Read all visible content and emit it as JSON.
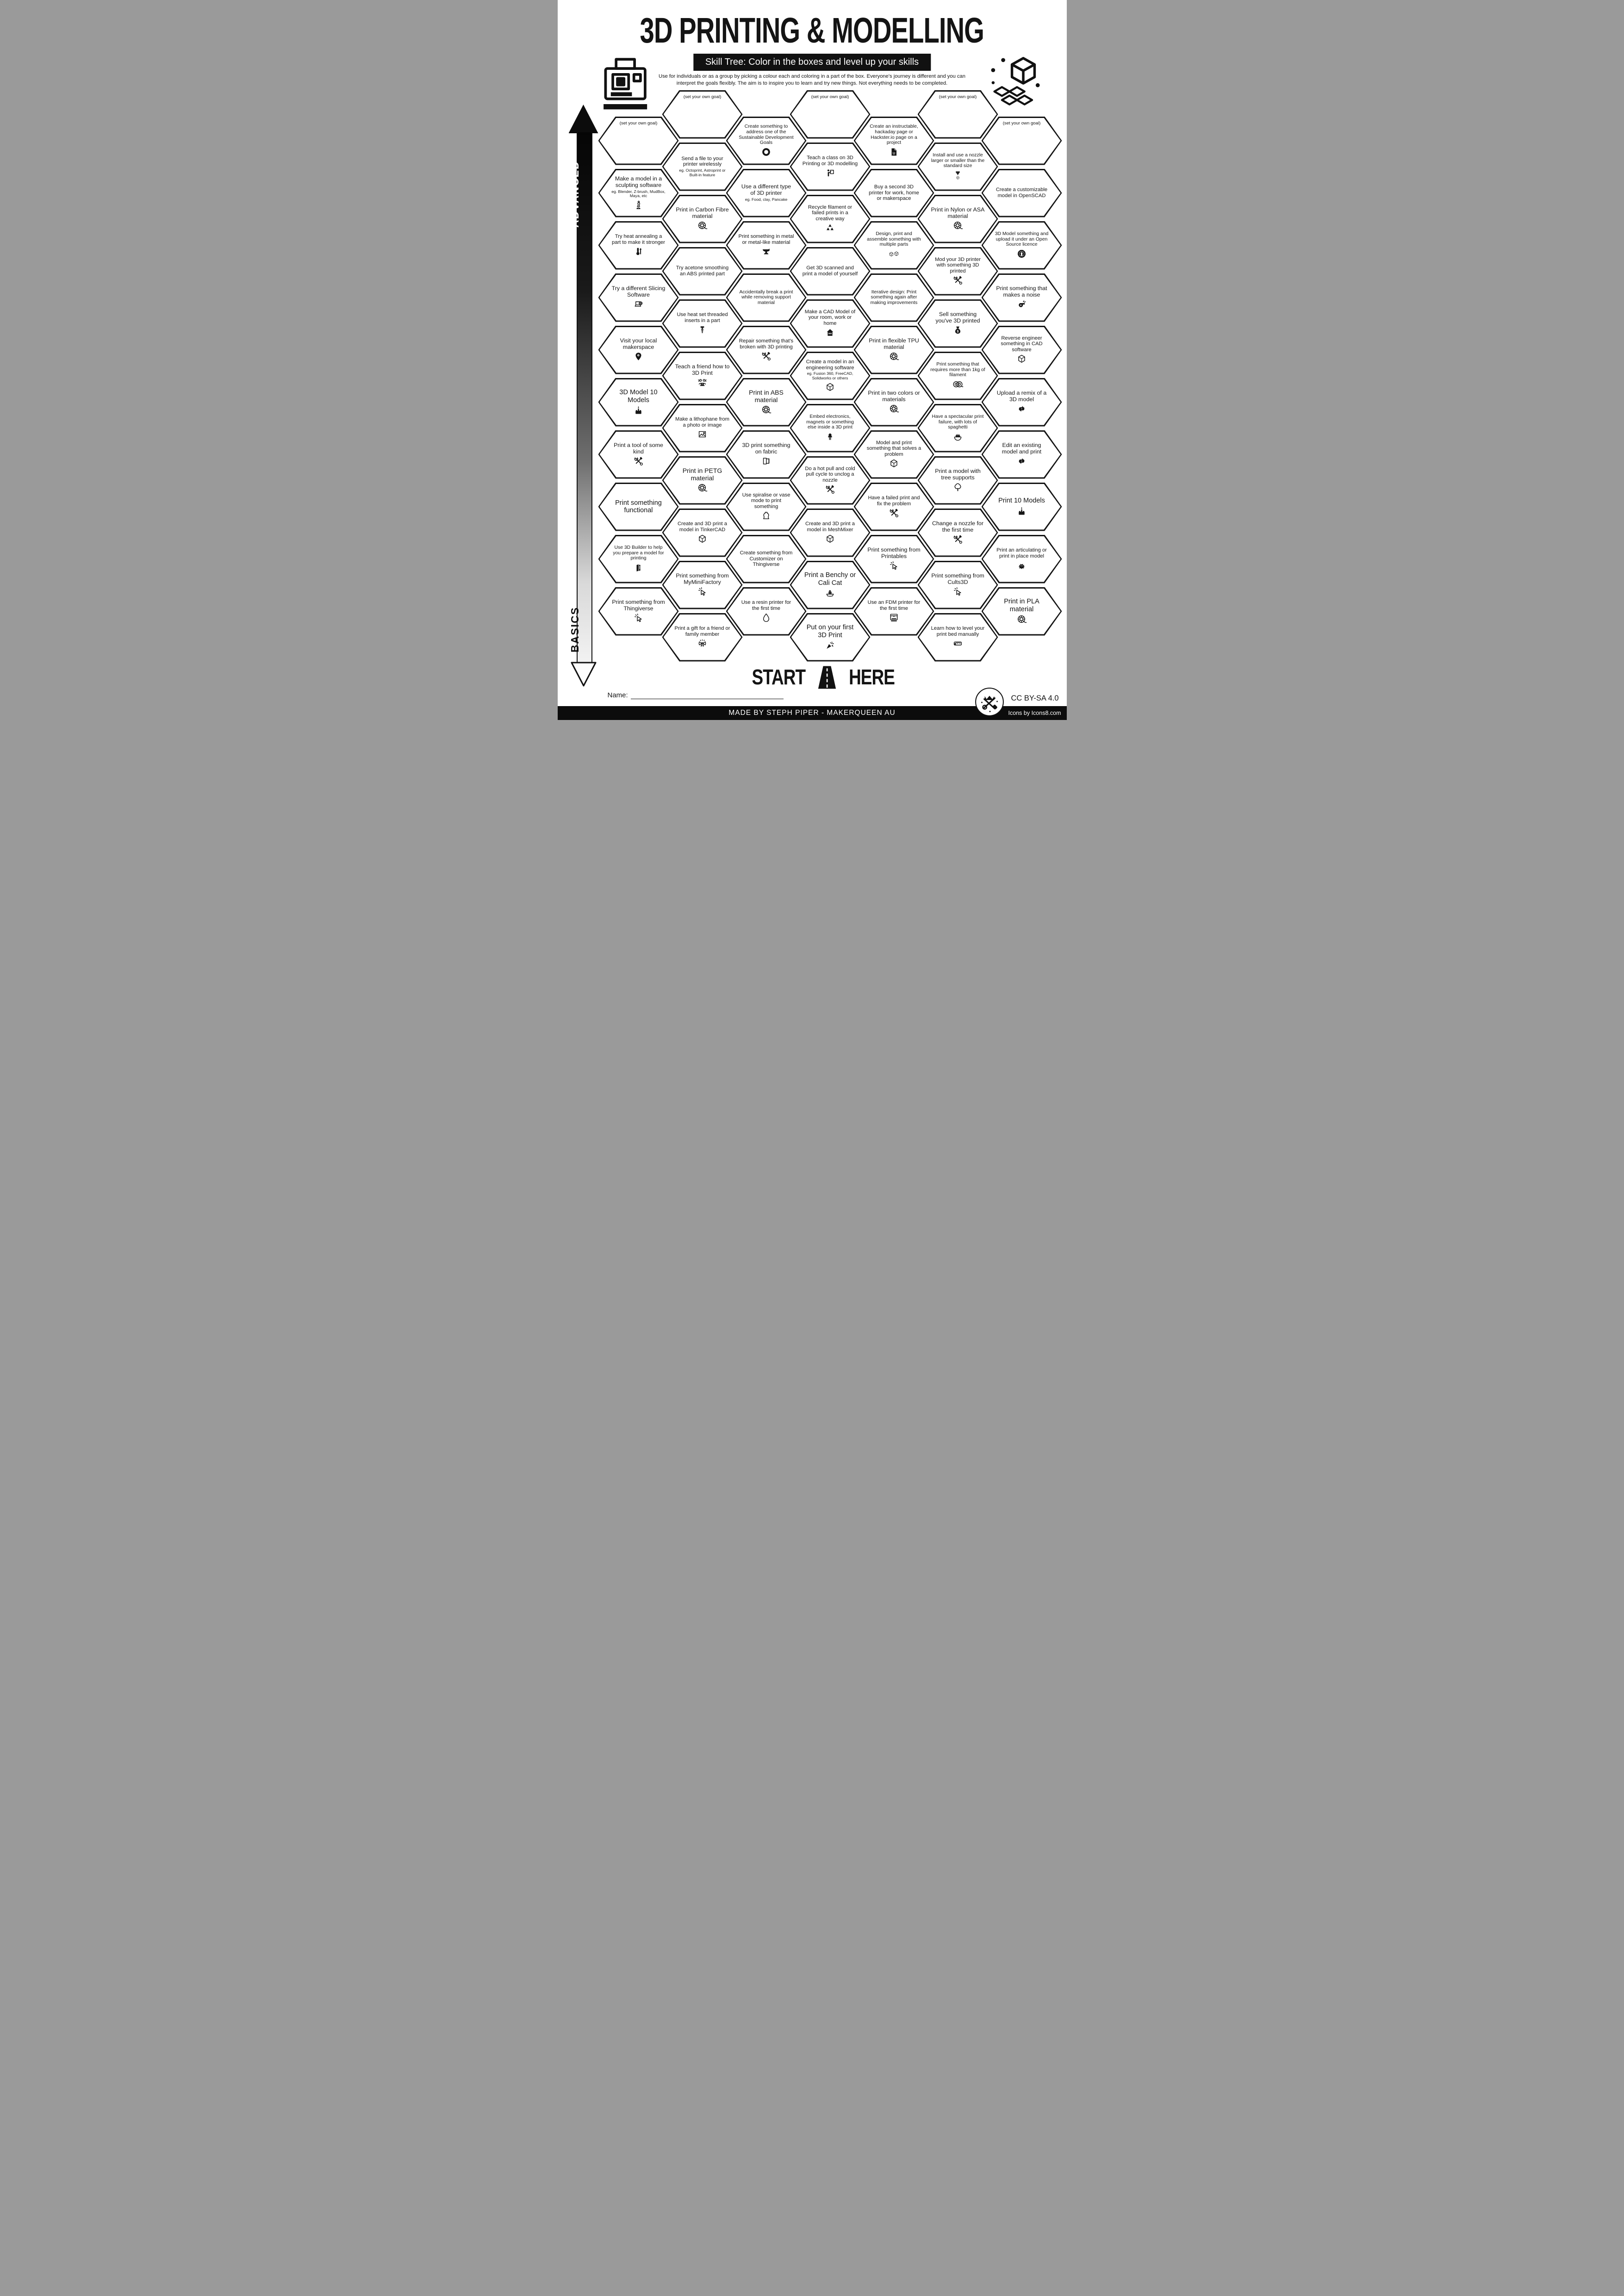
{
  "header": {
    "title": "3D PRINTING & MODELLING",
    "banner": "Skill Tree:  Color in the boxes and level up your skills",
    "desc1": "Use for individuals or as a group by picking a colour each and coloring in a part of the box.  Everyone's journey is different and you can",
    "desc2": "interpret the goals flexibly.  The aim is to inspire you to learn and try new things. Not everything needs to be completed."
  },
  "axis": {
    "advanced": "ADVANCED",
    "basics": "BASICS"
  },
  "start": {
    "start": "START",
    "here": "HERE"
  },
  "name_label": "Name:",
  "license": "CC BY-SA 4.0",
  "footer": {
    "credit": "MADE BY STEPH PIPER  -  MAKERQUEEN AU",
    "icons_credit": "Icons by Icons8.com"
  },
  "colors": {
    "ink": "#141414",
    "paper": "#ffffff",
    "footer_bg": "#0c0c0c"
  },
  "goal_label": "(set your own goal)",
  "columns": [
    {
      "id": "col-a",
      "hexes": [
        {
          "goal": true,
          "label": "(set your own goal)"
        },
        {
          "label": "Make a model in a sculpting software",
          "sub": "eg. Blender, Z-brush, MudBox, Maya, etc",
          "icon": "statue-icon"
        },
        {
          "label": "Try heat annealing a part to make it stronger",
          "icon": "thermometer-up-icon"
        },
        {
          "label": "Try a different Slicing Software",
          "icon": "laptop-gear-icon"
        },
        {
          "label": "Visit your local makerspace",
          "icon": "map-pin-icon"
        },
        {
          "label": "3D Model 10 Models",
          "big": true,
          "icon": "cake-icon"
        },
        {
          "label": "Print a tool of some kind",
          "icon": "tools-icon"
        },
        {
          "label": "Print something functional",
          "big": true
        },
        {
          "label": "Use 3D Builder to help you prepare a model for printing",
          "icon": "builder-icon"
        },
        {
          "label": "Print something from Thingiverse",
          "icon": "cursor-click-icon"
        }
      ]
    },
    {
      "id": "col-b",
      "hexes": [
        {
          "goal": true,
          "label": "(set your own goal)"
        },
        {
          "label": "Send a file to your printer wirelessly",
          "sub": "eg. Octoprint, Astroprint or Built-in feature"
        },
        {
          "label": "Print in Carbon Fibre material",
          "icon": "filament-spool-icon"
        },
        {
          "label": "Try acetone smoothing an ABS printed part"
        },
        {
          "label": "Use heat set threaded inserts in a part",
          "icon": "threaded-insert-icon"
        },
        {
          "label": "Teach a friend how to 3D Print",
          "icon": "teach-friend-icon"
        },
        {
          "label": "Make a lithophane from a photo or image",
          "icon": "picture-icon"
        },
        {
          "label": "Print in PETG material",
          "icon": "filament-spool-icon"
        },
        {
          "label": "Create and 3D print a model in TinkerCAD",
          "icon": "cube-icon"
        },
        {
          "label": "Print something from MyMiniFactory",
          "icon": "cursor-click-icon"
        },
        {
          "label": "Print a gift for a friend or family member",
          "icon": "gift-bow-icon"
        }
      ]
    },
    {
      "id": "col-c",
      "hexes": [
        {
          "label": "Create something to address one of the Sustainable Development Goals",
          "icon": "sdg-wheel-icon"
        },
        {
          "label": "Use a different type of 3D printer",
          "sub": "eg. Food, clay, Pancake"
        },
        {
          "label": "Print something in metal or metal-like material",
          "icon": "anvil-icon"
        },
        {
          "label": "Accidentally break a print while removing support material"
        },
        {
          "label": "Repair something that's broken with 3D printing",
          "icon": "tools-icon"
        },
        {
          "label": "Print in ABS material",
          "icon": "filament-spool-icon"
        },
        {
          "label": "3D print something on fabric",
          "icon": "fabric-icon"
        },
        {
          "label": "Use spiralise or vase mode to print something",
          "icon": "vase-icon"
        },
        {
          "label": "Create something from Customizer on Thingiverse"
        },
        {
          "label": "Use a resin printer for the first time",
          "icon": "droplet-icon"
        }
      ]
    },
    {
      "id": "col-d",
      "hexes": [
        {
          "goal": true,
          "label": "(set your own goal)"
        },
        {
          "label": "Teach a class on 3D Printing or 3D modelling",
          "icon": "presenter-icon"
        },
        {
          "label": "Recycle filament or failed prints in a creative way",
          "icon": "recycle-icon"
        },
        {
          "label": "Get 3D scanned and print a model of yourself"
        },
        {
          "label": "Make a CAD Model of your room, work or home",
          "icon": "house-icon"
        },
        {
          "label": "Create a model in an engineering software",
          "sub": "eg. Fusion 360, FreeCAD, Solidworks or others",
          "icon": "cube-icon"
        },
        {
          "label": "Embed electronics, magnets or something else inside a 3D print",
          "icon": "led-icon"
        },
        {
          "label": "Do a hot pull and cold pull cycle to unclog a nozzle",
          "icon": "tools-icon"
        },
        {
          "label": "Create and 3D print a model in MeshMixer",
          "icon": "cube-icon"
        },
        {
          "label": "Print a Benchy or Cali Cat",
          "big": true,
          "icon": "benchy-icon"
        },
        {
          "label": "Put on your first 3D Print",
          "big": true,
          "icon": "party-popper-icon"
        }
      ]
    },
    {
      "id": "col-e",
      "hexes": [
        {
          "label": "Create an instructable, hackaday page or Hackster.io page on a project",
          "icon": "project-doc-icon"
        },
        {
          "label": "Buy a second 3D printer for work, home or makerspace"
        },
        {
          "label": "Design, print and assemble something with multiple parts",
          "icon": "two-cubes-icon"
        },
        {
          "label": "Iterative design: Print something again after making improvements"
        },
        {
          "label": "Print in flexible TPU material",
          "icon": "filament-spool-icon"
        },
        {
          "label": "Print in two colors or materials",
          "icon": "filament-spool-icon"
        },
        {
          "label": "Model and print something that solves a problem",
          "icon": "cube-icon"
        },
        {
          "label": "Have a failed print and fix the problem",
          "icon": "tools-icon"
        },
        {
          "label": "Print something from Printables",
          "icon": "cursor-click-icon"
        },
        {
          "label": "Use an FDM printer for the first time",
          "icon": "fdm-printer-icon"
        }
      ]
    },
    {
      "id": "col-f",
      "hexes": [
        {
          "goal": true,
          "label": "(set your own goal)"
        },
        {
          "label": "Install and use a nozzle larger or smaller than the standard size",
          "icon": "nozzle-icon"
        },
        {
          "label": "Print in Nylon or ASA material",
          "icon": "filament-spool-icon"
        },
        {
          "label": "Mod your 3D printer with something 3D printed",
          "icon": "tools-icon"
        },
        {
          "label": "Sell something you've 3D printed",
          "icon": "money-bag-icon"
        },
        {
          "label": "Print something that requires more than 1kg of filament",
          "icon": "two-spools-icon"
        },
        {
          "label": "Have a spectacular print failure, with lots of spaghetti",
          "icon": "spaghetti-bowl-icon"
        },
        {
          "label": "Print a model with tree supports",
          "icon": "tree-icon"
        },
        {
          "label": "Change a nozzle for the first time",
          "icon": "tools-icon"
        },
        {
          "label": "Print something from Cults3D",
          "icon": "cursor-click-icon"
        },
        {
          "label": "Learn how to level your print bed manually",
          "icon": "ruler-icon"
        }
      ]
    },
    {
      "id": "col-g",
      "hexes": [
        {
          "goal": true,
          "label": "(set your own goal)"
        },
        {
          "label": "Create a customizable model in OpenSCAD"
        },
        {
          "label": "3D Model something and upload it under an Open Source licence",
          "icon": "open-source-gear-icon"
        },
        {
          "label": "Print something that makes a noise",
          "icon": "whistle-icon"
        },
        {
          "label": "Reverse engineer something in CAD software",
          "icon": "cube-icon"
        },
        {
          "label": "Upload a remix of a 3D model",
          "icon": "remix-arrows-icon"
        },
        {
          "label": "Edit an existing model and print",
          "icon": "remix-arrows-icon"
        },
        {
          "label": "Print 10 Models",
          "big": true,
          "icon": "cake-icon"
        },
        {
          "label": "Print an articulating or print in place model",
          "icon": "dragon-icon"
        },
        {
          "label": "Print in PLA material",
          "big": true,
          "icon": "filament-spool-icon"
        }
      ]
    }
  ]
}
